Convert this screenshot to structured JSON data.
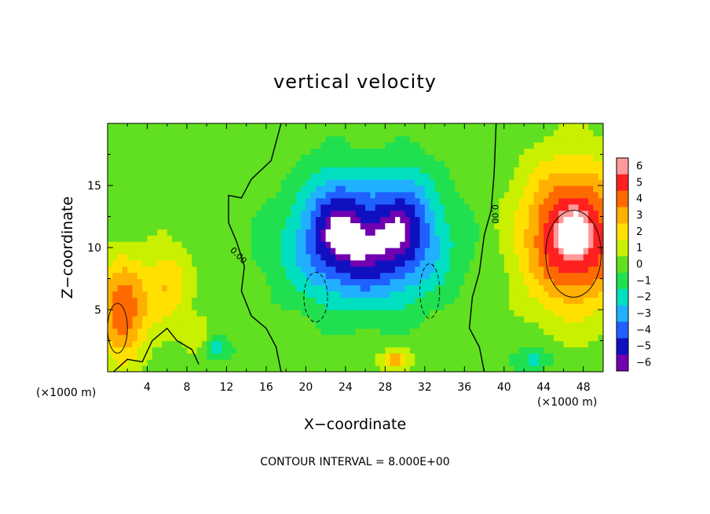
{
  "chart_data": {
    "type": "heatmap",
    "title": "vertical velocity",
    "xlabel": "X−coordinate",
    "ylabel": "Z−coordinate",
    "x_units_left": "(×1000 m)",
    "x_units_right": "(×1000 m)",
    "xlim": [
      0,
      50
    ],
    "ylim": [
      0,
      20
    ],
    "x_ticks": [
      4,
      8,
      12,
      16,
      20,
      24,
      28,
      32,
      36,
      40,
      44,
      48
    ],
    "y_ticks": [
      5,
      10,
      15
    ],
    "colorbar": {
      "range": [
        -6,
        6
      ],
      "tick_values": [
        6,
        5,
        4,
        3,
        2,
        1,
        0,
        -1,
        -2,
        -3,
        -4,
        -5,
        -6
      ],
      "tick_labels": [
        "6",
        "5",
        "4",
        "3",
        "2",
        "1",
        "0",
        "−1",
        "−2",
        "−3",
        "−4",
        "−5",
        "−6"
      ],
      "colors": [
        "#ff9a9a",
        "#ff2020",
        "#ff6a00",
        "#ffb000",
        "#ffe000",
        "#c8f000",
        "#60e020",
        "#20e050",
        "#00e0c0",
        "#20b0ff",
        "#2060ff",
        "#1010c0",
        "#7000b0"
      ]
    },
    "contour_label": "0.00",
    "contour_interval_text": "CONTOUR INTERVAL = 8.000E+00",
    "features": [
      {
        "kind": "downdraft",
        "x": 26,
        "z": 10,
        "sx": 7.5,
        "sy": 4.5,
        "w": -5.5
      },
      {
        "kind": "downdraft",
        "x": 23,
        "z": 13,
        "sx": 3,
        "sy": 4,
        "w": -2.5
      },
      {
        "kind": "downdraft",
        "x": 30,
        "z": 13,
        "sx": 3,
        "sy": 4,
        "w": -2.5
      },
      {
        "kind": "updraft",
        "x": 47,
        "z": 11,
        "sx": 5,
        "sy": 5.5,
        "w": 6.5
      },
      {
        "kind": "updraft",
        "x": 1.5,
        "z": 5,
        "sx": 2.5,
        "sy": 4,
        "w": 4.5
      },
      {
        "kind": "updraft",
        "x": 6,
        "z": 7,
        "sx": 2.2,
        "sy": 3,
        "w": 2.5
      },
      {
        "kind": "updraft",
        "x": 9,
        "z": 3,
        "sx": 1.5,
        "sy": 1.5,
        "w": 1.5
      },
      {
        "kind": "updraft",
        "x": 29,
        "z": 1,
        "sx": 1.5,
        "sy": 0.8,
        "w": 3
      },
      {
        "kind": "downdraft",
        "x": 11,
        "z": 2,
        "sx": 1.5,
        "sy": 1,
        "w": -2
      },
      {
        "kind": "downdraft",
        "x": 43,
        "z": 1,
        "sx": 2,
        "sy": 1,
        "w": -2
      }
    ]
  }
}
